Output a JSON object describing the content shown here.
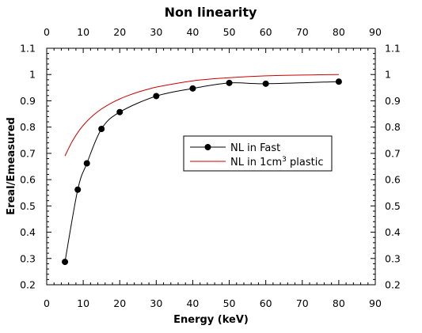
{
  "chart_data": {
    "type": "line",
    "title": "Non linearity",
    "xlabel": "Energy (keV)",
    "ylabel": "Ereal/Emeasured",
    "xlim": [
      0,
      90
    ],
    "ylim": [
      0.2,
      1.1
    ],
    "x_ticks": [
      "0",
      "10",
      "20",
      "30",
      "40",
      "50",
      "60",
      "70",
      "80",
      "90"
    ],
    "y_ticks": [
      "0.2",
      "0.3",
      "0.4",
      "0.5",
      "0.6",
      "0.7",
      "0.8",
      "0.9",
      "1",
      "1.1"
    ],
    "legend_position": "center-right",
    "grid": false,
    "series": [
      {
        "name": "NL in Fast",
        "color": "#000000",
        "marker": "circle",
        "x": [
          5,
          8.5,
          11,
          15,
          20,
          30,
          40,
          50,
          60,
          80
        ],
        "y": [
          0.287,
          0.562,
          0.662,
          0.793,
          0.857,
          0.918,
          0.947,
          0.968,
          0.965,
          0.973
        ]
      },
      {
        "name": "NL in 1cm³ plastic",
        "legend_main": "NL in 1cm",
        "legend_sup": "3",
        "legend_after": " plastic",
        "color": "#cc0000",
        "marker": "none",
        "x": [
          5,
          7,
          9,
          11,
          13,
          15,
          17.5,
          20,
          22.5,
          25,
          27.5,
          30,
          35,
          40,
          45,
          50,
          55,
          60,
          65,
          70,
          75,
          80
        ],
        "y": [
          0.69,
          0.746,
          0.789,
          0.822,
          0.848,
          0.869,
          0.89,
          0.907,
          0.921,
          0.933,
          0.943,
          0.952,
          0.965,
          0.976,
          0.983,
          0.988,
          0.992,
          0.995,
          0.997,
          0.998,
          0.999,
          1.0
        ]
      }
    ]
  }
}
